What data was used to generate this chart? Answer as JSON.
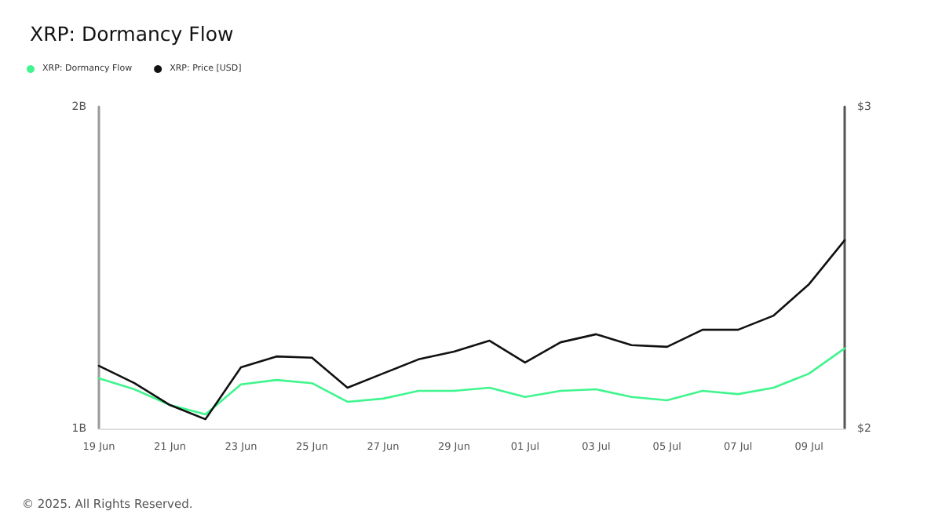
{
  "chart_data": {
    "type": "line",
    "title": "XRP: Dormancy Flow",
    "categories": [
      "19 Jun",
      null,
      "21 Jun",
      null,
      "23 Jun",
      null,
      "25 Jun",
      null,
      "27 Jun",
      null,
      "29 Jun",
      null,
      "01 Jul",
      null,
      "03 Jul",
      null,
      "05 Jul",
      null,
      "07 Jul",
      null,
      "09 Jul",
      null
    ],
    "series": [
      {
        "name": "XRP: Dormancy Flow",
        "color": "#3ff58e",
        "values": [
          1.156,
          1.122,
          1.073,
          1.044,
          1.137,
          1.151,
          1.141,
          1.083,
          1.093,
          1.117,
          1.117,
          1.127,
          1.098,
          1.117,
          1.122,
          1.098,
          1.088,
          1.117,
          1.107,
          1.127,
          1.171,
          1.249
        ]
      },
      {
        "name": "XRP: Price [USD]",
        "color": "#111111",
        "axis": "y2",
        "values": [
          2.195,
          2.141,
          2.073,
          2.029,
          2.19,
          2.224,
          2.22,
          2.127,
          2.171,
          2.215,
          2.239,
          2.273,
          2.205,
          2.268,
          2.293,
          2.259,
          2.254,
          2.307,
          2.307,
          2.351,
          2.449,
          2.585
        ]
      }
    ],
    "ylim": [
      1,
      2
    ],
    "yticks": [
      {
        "value": 1,
        "label": "1B"
      },
      {
        "value": 2,
        "label": "2B"
      }
    ],
    "y2lim": [
      2,
      3
    ],
    "y2ticks": [
      {
        "value": 2,
        "label": "$2"
      },
      {
        "value": 3,
        "label": "$3"
      }
    ],
    "grid": false,
    "legend": "top left",
    "marker": "none",
    "line_style": "solid",
    "annotations": [
      "© 2025. All Rights Reserved."
    ]
  }
}
